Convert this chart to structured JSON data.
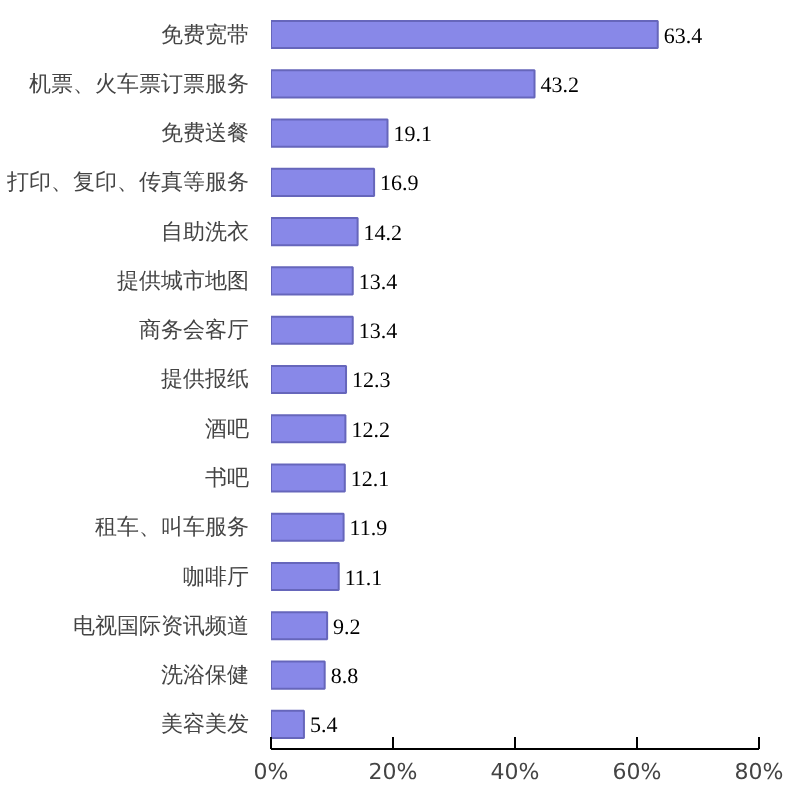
{
  "chart_data": {
    "type": "bar",
    "orientation": "horizontal",
    "categories": [
      "免费宽带",
      "机票、火车票订票服务",
      "免费送餐",
      "打印、复印、传真等服务",
      "自助洗衣",
      "提供城市地图",
      "商务会客厅",
      "提供报纸",
      "酒吧",
      "书吧",
      "租车、叫车服务",
      "咖啡厅",
      "电视国际资讯频道",
      "洗浴保健",
      "美容美发"
    ],
    "values": [
      63.4,
      43.2,
      19.1,
      16.9,
      14.2,
      13.4,
      13.4,
      12.3,
      12.2,
      12.1,
      11.9,
      11.1,
      9.2,
      8.8,
      5.4
    ],
    "color": "#8888e8",
    "data_labels": true,
    "grid": false,
    "xlim": [
      0,
      80
    ],
    "xticks": [
      {
        "value": 0,
        "label": "0%"
      },
      {
        "value": 20,
        "label": "20%"
      },
      {
        "value": 40,
        "label": "40%"
      },
      {
        "value": 60,
        "label": "60%"
      },
      {
        "value": 80,
        "label": "80%"
      }
    ]
  }
}
